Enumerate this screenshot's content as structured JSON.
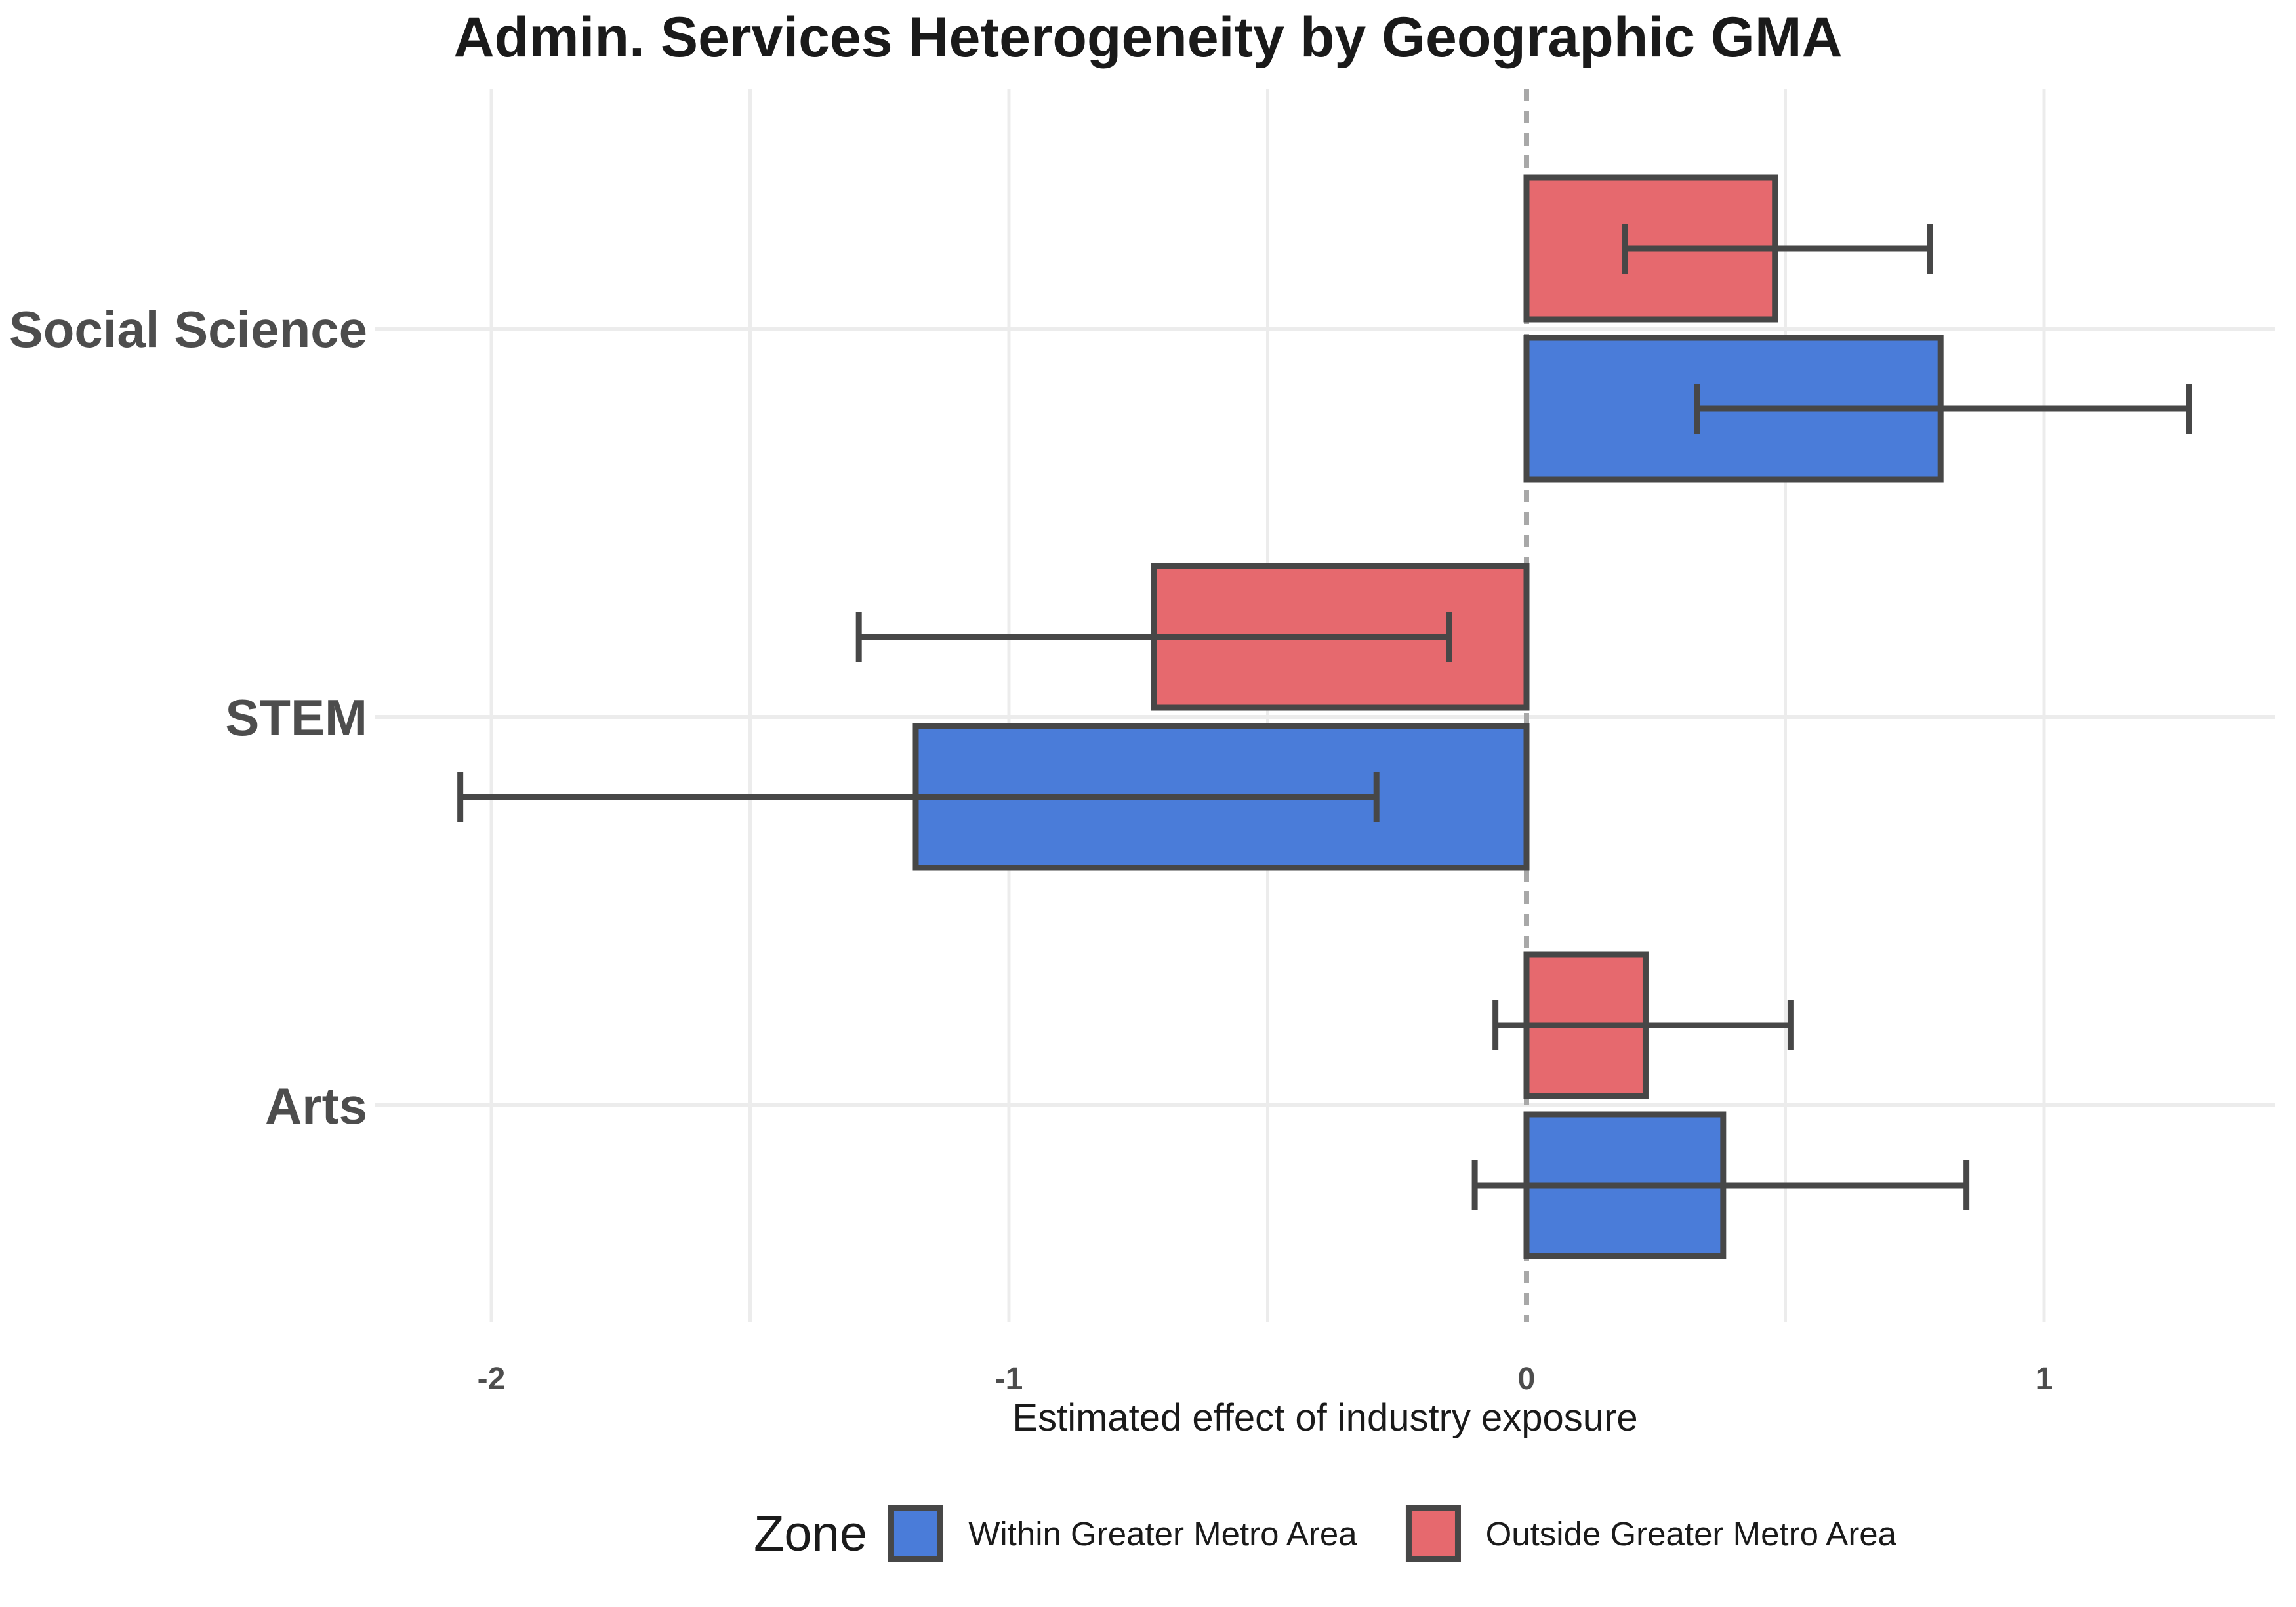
{
  "chart_data": {
    "type": "bar",
    "orientation": "horizontal",
    "title": "Admin. Services Heterogeneity by Geographic GMA",
    "xlabel": "Estimated effect of industry exposure",
    "legend_title": "Zone",
    "legend_position": "bottom",
    "grid": "on",
    "categories": [
      "Social Science",
      "STEM",
      "Arts"
    ],
    "series": [
      {
        "name": "Within Greater Metro Area",
        "color": "#4A7CD9",
        "values": [
          0.8,
          -1.18,
          0.38
        ],
        "ci_low": [
          0.33,
          -2.06,
          -0.1
        ],
        "ci_high": [
          1.28,
          -0.29,
          0.85
        ]
      },
      {
        "name": "Outside Greater Metro Area",
        "color": "#E6696E",
        "values": [
          0.48,
          -0.72,
          0.23
        ],
        "ci_low": [
          0.19,
          -1.29,
          -0.06
        ],
        "ci_high": [
          0.78,
          -0.15,
          0.51
        ]
      }
    ],
    "x_ticks": [
      -2,
      -1,
      0,
      1
    ],
    "x_tick_labels": [
      "-2",
      "-1",
      "0",
      "1"
    ],
    "grid_x": [
      -2,
      -1.5,
      -1,
      -0.5,
      0.5,
      1
    ],
    "xlim": [
      -2.22,
      1.45
    ],
    "zero_line": 0
  },
  "style": {
    "bar_border_color": "#474747",
    "error_bar_color": "#474747",
    "grid_color": "#ECECEC",
    "zero_line_color": "#A8A8A8",
    "axis_text_color": "#4D4D4D",
    "background": "#FFFFFF"
  }
}
